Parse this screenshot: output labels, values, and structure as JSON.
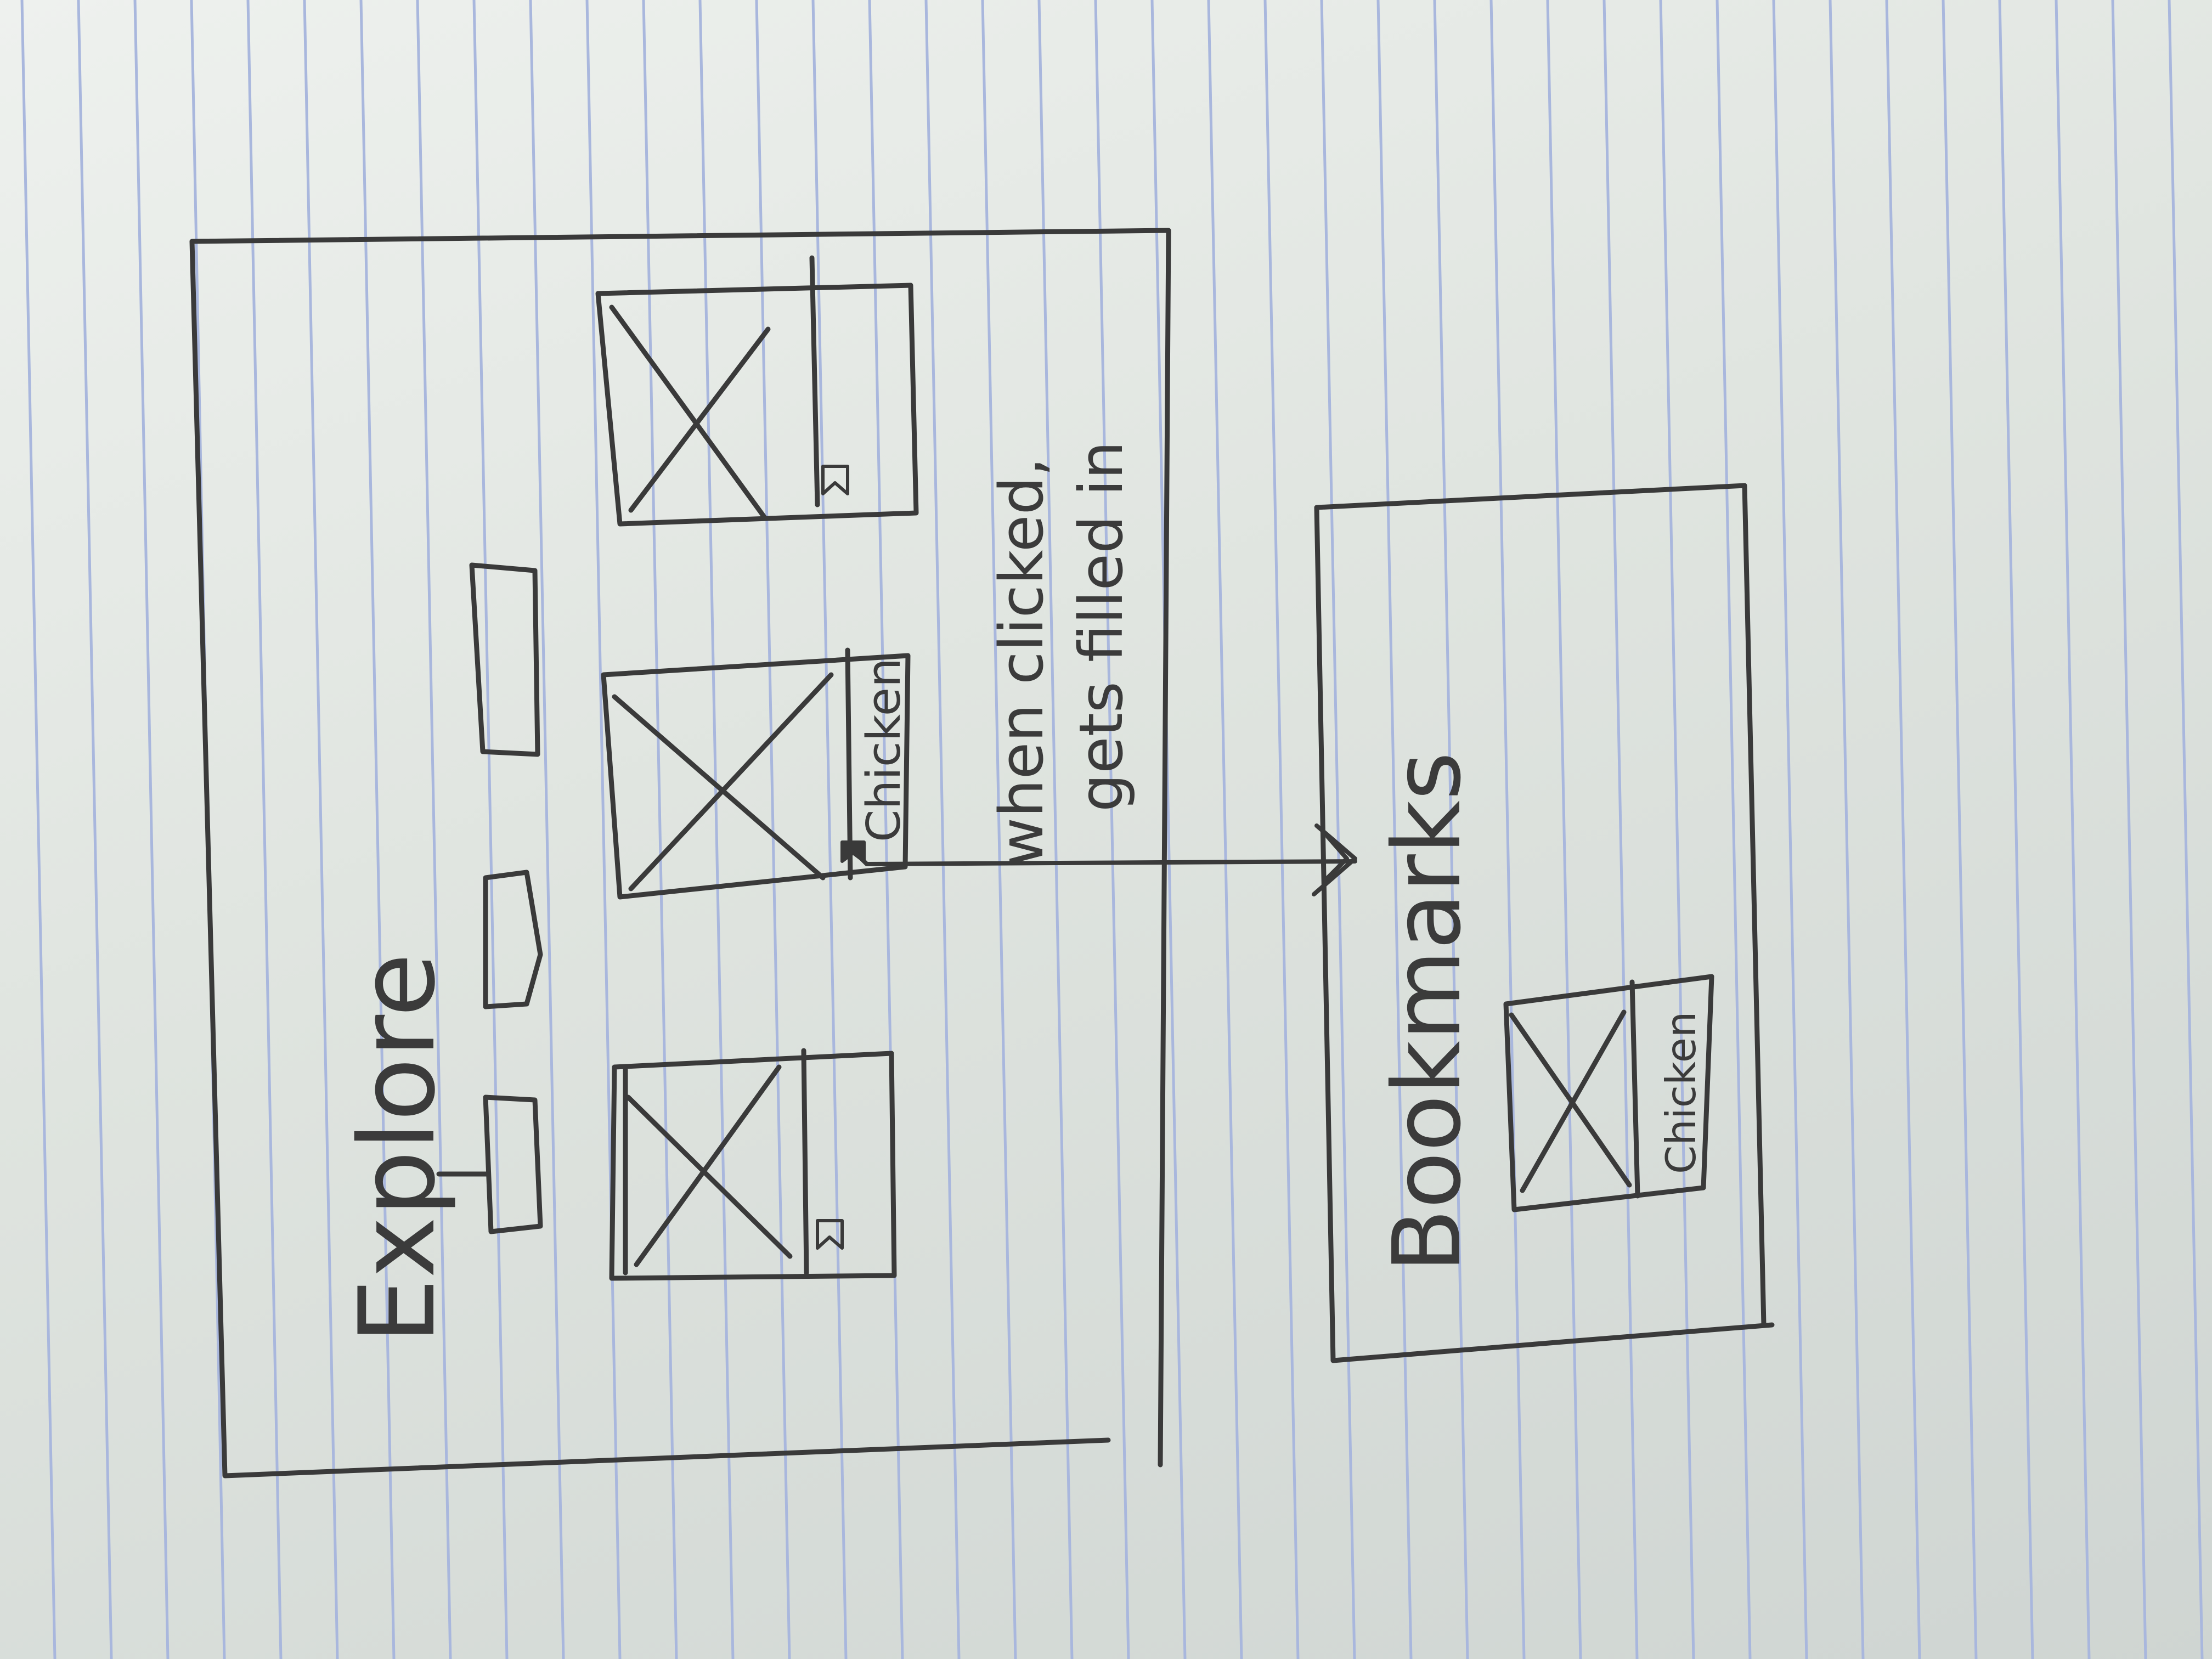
{
  "paper": {
    "background": "#e3e7e3",
    "rule_color": "#a9b7dd",
    "ink_color": "#3a3a3a"
  },
  "explore": {
    "title": "Explore",
    "filters": [
      {
        "name": "filter-tab-1"
      },
      {
        "name": "filter-tab-2"
      },
      {
        "name": "filter-tab-3"
      }
    ],
    "cards": [
      {
        "name": "recipe-card-1",
        "label": "",
        "bookmark_filled": false
      },
      {
        "name": "recipe-card-2",
        "label": "Chicken",
        "bookmark_filled": true
      },
      {
        "name": "recipe-card-3",
        "label": "",
        "bookmark_filled": false
      }
    ],
    "annotation_line1": "when clicked,",
    "annotation_line2": "gets filled in"
  },
  "bookmarks": {
    "title": "Bookmarks",
    "cards": [
      {
        "name": "bookmarked-card-1",
        "label": "Chicken"
      }
    ]
  }
}
